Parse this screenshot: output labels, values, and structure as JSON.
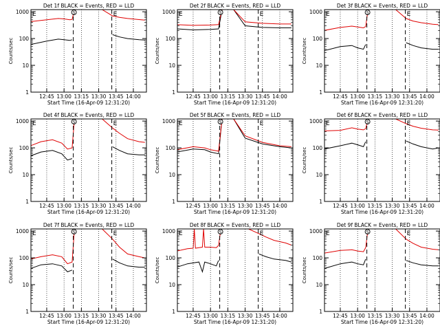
{
  "figure": {
    "ylabel": "Counts/sec",
    "xlabel": "Start Time (16-Apr-09 12:31:20)",
    "xticks": [
      "12:45",
      "13:00",
      "13:15",
      "13:30",
      "13:45",
      "14:00"
    ],
    "yticks": [
      "1",
      "10",
      "100",
      "1000"
    ],
    "colors": {
      "events": "#000000",
      "lld": "#e00000"
    }
  },
  "chart_data": [
    {
      "type": "line",
      "title": "Det 1f BLACK = Events, RED = LLD",
      "xlabel": "Start Time (16-Apr-09 12:31:20)",
      "ylabel": "Counts/sec",
      "xlim": [
        "12:31:20",
        "14:11:20"
      ],
      "ylim": [
        1,
        1200
      ],
      "yscale": "log",
      "markers": {
        "eclipse": [
          "12:31:20",
          "13:41:20"
        ],
        "saa": [
          "13:08:00"
        ]
      },
      "series": [
        {
          "key": "events",
          "x": [
            "12:31",
            "12:45",
            "12:55",
            "13:00",
            "13:05",
            "13:07"
          ],
          "values": [
            60,
            80,
            95,
            90,
            85,
            90
          ]
        },
        {
          "key": "lld",
          "x": [
            "12:31",
            "12:45",
            "12:55",
            "13:00",
            "13:05",
            "13:07",
            "13:09",
            "13:15",
            "13:25",
            "13:30"
          ],
          "values": [
            430,
            500,
            560,
            540,
            500,
            520,
            1200,
            1200,
            1200,
            1200
          ]
        },
        {
          "key": "events",
          "x": [
            "13:42",
            "13:48",
            "13:55",
            "14:05",
            "14:10"
          ],
          "values": [
            140,
            115,
            100,
            90,
            88
          ]
        },
        {
          "key": "lld",
          "x": [
            "13:33",
            "13:42",
            "13:48",
            "13:55",
            "14:05",
            "14:10"
          ],
          "values": [
            1200,
            700,
            620,
            560,
            510,
            490
          ]
        }
      ]
    },
    {
      "type": "line",
      "title": "Det 2f BLACK = Events, RED = LLD",
      "xlabel": "Start Time (16-Apr-09 12:31:20)",
      "ylabel": "Counts/sec",
      "xlim": [
        "12:31:20",
        "14:11:20"
      ],
      "ylim": [
        1,
        1200
      ],
      "yscale": "log",
      "markers": {
        "eclipse": [
          "12:31:20",
          "13:41:20"
        ],
        "saa": [
          "13:08:00"
        ]
      },
      "series": [
        {
          "key": "events",
          "x": [
            "12:31",
            "12:45",
            "13:00",
            "13:07",
            "13:10",
            "13:20",
            "13:30",
            "13:45",
            "14:00",
            "14:10"
          ],
          "values": [
            230,
            210,
            220,
            230,
            1200,
            1200,
            300,
            260,
            250,
            250
          ]
        },
        {
          "key": "lld",
          "x": [
            "12:31",
            "12:45",
            "13:00",
            "13:07",
            "13:10",
            "13:20",
            "13:30",
            "13:45",
            "14:00",
            "14:10"
          ],
          "values": [
            330,
            310,
            320,
            330,
            1200,
            1200,
            420,
            370,
            350,
            350
          ]
        }
      ]
    },
    {
      "type": "line",
      "title": "Det 3f BLACK = Events, RED = LLD",
      "xlabel": "Start Time (16-Apr-09 12:31:20)",
      "ylabel": "Counts/sec",
      "xlim": [
        "12:31:20",
        "14:11:20"
      ],
      "ylim": [
        1,
        1200
      ],
      "yscale": "log",
      "markers": {
        "eclipse": [
          "12:31:20",
          "13:41:20"
        ],
        "saa": [
          "13:08:00"
        ]
      },
      "series": [
        {
          "key": "events",
          "x": [
            "12:31",
            "12:45",
            "12:55",
            "13:00",
            "13:05",
            "13:07"
          ],
          "values": [
            35,
            50,
            55,
            45,
            40,
            60
          ]
        },
        {
          "key": "lld",
          "x": [
            "12:31",
            "12:45",
            "12:55",
            "13:00",
            "13:05",
            "13:07",
            "13:09",
            "13:15",
            "13:25",
            "13:30"
          ],
          "values": [
            200,
            260,
            290,
            270,
            250,
            280,
            1200,
            1200,
            1200,
            1200
          ]
        },
        {
          "key": "events",
          "x": [
            "13:42",
            "13:48",
            "13:55",
            "14:05",
            "14:10"
          ],
          "values": [
            70,
            55,
            45,
            40,
            40
          ]
        },
        {
          "key": "lld",
          "x": [
            "13:33",
            "13:42",
            "13:48",
            "13:55",
            "14:05",
            "14:10"
          ],
          "values": [
            1200,
            560,
            450,
            390,
            340,
            330
          ]
        }
      ]
    },
    {
      "type": "line",
      "title": "Det 4f BLACK = Events, RED = LLD",
      "xlabel": "Start Time (16-Apr-09 12:31:20)",
      "ylabel": "Counts/sec",
      "xlim": [
        "12:31:20",
        "14:11:20"
      ],
      "ylim": [
        1,
        1200
      ],
      "yscale": "log",
      "markers": {
        "eclipse": [
          "12:31:20",
          "13:41:20"
        ],
        "saa": [
          "13:08:00"
        ]
      },
      "series": [
        {
          "key": "events",
          "x": [
            "12:31",
            "12:40",
            "12:50",
            "12:58",
            "13:03",
            "13:07"
          ],
          "values": [
            50,
            70,
            80,
            60,
            35,
            40
          ]
        },
        {
          "key": "lld",
          "x": [
            "12:31",
            "12:40",
            "12:50",
            "12:58",
            "13:03",
            "13:07",
            "13:09",
            "13:15",
            "13:25",
            "13:30"
          ],
          "values": [
            120,
            170,
            200,
            150,
            90,
            100,
            1200,
            1200,
            1200,
            1200
          ]
        },
        {
          "key": "events",
          "x": [
            "13:42",
            "13:48",
            "13:55",
            "14:05",
            "14:10"
          ],
          "values": [
            110,
            80,
            60,
            55,
            55
          ]
        },
        {
          "key": "lld",
          "x": [
            "13:33",
            "13:42",
            "13:48",
            "13:55",
            "14:05",
            "14:10"
          ],
          "values": [
            1200,
            550,
            350,
            220,
            170,
            160
          ]
        }
      ]
    },
    {
      "type": "line",
      "title": "Det 5f BLACK = Events, RED = LLD",
      "xlabel": "Start Time (16-Apr-09 12:31:20)",
      "ylabel": "Counts/sec",
      "xlim": [
        "12:31:20",
        "14:11:20"
      ],
      "ylim": [
        1,
        1200
      ],
      "yscale": "log",
      "markers": {
        "eclipse": [
          "12:31:20",
          "13:41:20"
        ],
        "saa": [
          "13:08:00"
        ]
      },
      "series": [
        {
          "key": "events",
          "x": [
            "12:31",
            "12:45",
            "12:55",
            "13:00",
            "13:07",
            "13:10",
            "13:20",
            "13:30",
            "13:45",
            "14:00",
            "14:10"
          ],
          "values": [
            70,
            90,
            85,
            70,
            60,
            1200,
            1200,
            230,
            140,
            110,
            100
          ]
        },
        {
          "key": "lld",
          "x": [
            "12:31",
            "12:45",
            "12:55",
            "13:00",
            "13:07",
            "13:10",
            "13:20",
            "13:30",
            "13:45",
            "14:00",
            "14:10"
          ],
          "values": [
            85,
            110,
            100,
            85,
            75,
            1200,
            1200,
            280,
            160,
            120,
            110
          ]
        }
      ]
    },
    {
      "type": "line",
      "title": "Det 6f BLACK = Events, RED = LLD",
      "xlabel": "Start Time (16-Apr-09 12:31:20)",
      "ylabel": "Counts/sec",
      "xlim": [
        "12:31:20",
        "14:11:20"
      ],
      "ylim": [
        1,
        1200
      ],
      "yscale": "log",
      "markers": {
        "eclipse": [
          "12:31:20",
          "13:41:20"
        ],
        "saa": [
          "13:08:00"
        ]
      },
      "series": [
        {
          "key": "events",
          "x": [
            "12:31",
            "12:45",
            "12:55",
            "13:00",
            "13:05",
            "13:07"
          ],
          "values": [
            90,
            120,
            150,
            130,
            110,
            170
          ]
        },
        {
          "key": "lld",
          "x": [
            "12:31",
            "12:45",
            "12:55",
            "13:00",
            "13:05",
            "13:07",
            "13:09",
            "13:15",
            "13:25",
            "13:30"
          ],
          "values": [
            430,
            450,
            560,
            500,
            470,
            520,
            1200,
            1200,
            1200,
            1200
          ]
        },
        {
          "key": "events",
          "x": [
            "13:42",
            "13:48",
            "13:55",
            "14:05",
            "14:10"
          ],
          "values": [
            180,
            140,
            110,
            90,
            100
          ]
        },
        {
          "key": "lld",
          "x": [
            "13:33",
            "13:42",
            "13:48",
            "13:55",
            "14:05",
            "14:10"
          ],
          "values": [
            1200,
            800,
            640,
            540,
            470,
            460
          ]
        }
      ]
    },
    {
      "type": "line",
      "title": "Det 7f BLACK = Events, RED = LLD",
      "xlabel": "Start Time (16-Apr-09 12:31:20)",
      "ylabel": "Counts/sec",
      "xlim": [
        "12:31:20",
        "14:11:20"
      ],
      "ylim": [
        1,
        1200
      ],
      "yscale": "log",
      "markers": {
        "eclipse": [
          "12:31:20",
          "13:41:20"
        ],
        "saa": [
          "13:08:00"
        ]
      },
      "series": [
        {
          "key": "events",
          "x": [
            "12:31",
            "12:40",
            "12:50",
            "12:58",
            "13:03",
            "13:07"
          ],
          "values": [
            40,
            55,
            60,
            50,
            30,
            35
          ]
        },
        {
          "key": "lld",
          "x": [
            "12:31",
            "12:40",
            "12:50",
            "12:58",
            "13:03",
            "13:07",
            "13:09",
            "13:15",
            "13:25",
            "13:30"
          ],
          "values": [
            90,
            110,
            130,
            110,
            60,
            70,
            1200,
            1200,
            1200,
            1200
          ]
        },
        {
          "key": "events",
          "x": [
            "13:42",
            "13:48",
            "13:55",
            "14:05",
            "14:10"
          ],
          "values": [
            90,
            65,
            50,
            45,
            45
          ]
        },
        {
          "key": "lld",
          "x": [
            "13:33",
            "13:42",
            "13:48",
            "13:55",
            "14:05",
            "14:10"
          ],
          "values": [
            1200,
            500,
            250,
            140,
            110,
            100
          ]
        }
      ]
    },
    {
      "type": "line",
      "title": "Det 8f BLACK = Events, RED = LLD",
      "xlabel": "Start Time (16-Apr-09 12:31:20)",
      "ylabel": "Counts/sec",
      "xlim": [
        "12:31:20",
        "14:11:20"
      ],
      "ylim": [
        1,
        1200
      ],
      "yscale": "log",
      "markers": {
        "eclipse": [
          "12:31:20",
          "13:41:20"
        ],
        "saa": [
          "13:08:00"
        ]
      },
      "series": [
        {
          "key": "events",
          "x": [
            "12:31",
            "12:40",
            "12:50",
            "12:53",
            "12:55",
            "13:00",
            "13:05",
            "13:07"
          ],
          "values": [
            45,
            60,
            70,
            30,
            70,
            60,
            50,
            80
          ]
        },
        {
          "key": "lld",
          "x": [
            "12:31",
            "12:40",
            "12:45",
            "12:46",
            "12:47",
            "12:50",
            "12:53",
            "12:54",
            "12:55",
            "13:00",
            "13:05",
            "13:07",
            "13:09",
            "13:15",
            "13:25",
            "13:30"
          ],
          "values": [
            180,
            220,
            230,
            1200,
            230,
            240,
            250,
            1200,
            250,
            250,
            240,
            290,
            1200,
            1200,
            1200,
            1200
          ]
        },
        {
          "key": "events",
          "x": [
            "13:42",
            "13:48",
            "13:55",
            "14:05",
            "14:10"
          ],
          "values": [
            140,
            110,
            90,
            80,
            70
          ]
        },
        {
          "key": "lld",
          "x": [
            "13:33",
            "13:42",
            "13:48",
            "13:55",
            "14:05",
            "14:10"
          ],
          "values": [
            1200,
            800,
            600,
            450,
            360,
            300
          ]
        }
      ]
    },
    {
      "type": "line",
      "title": "Det 9f BLACK = Events, RED = LLD",
      "xlabel": "Start Time (16-Apr-09 12:31:20)",
      "ylabel": "Counts/sec",
      "xlim": [
        "12:31:20",
        "14:11:20"
      ],
      "ylim": [
        1,
        1200
      ],
      "yscale": "log",
      "markers": {
        "eclipse": [
          "12:31:20",
          "13:41:20"
        ],
        "saa": [
          "13:08:00"
        ]
      },
      "series": [
        {
          "key": "events",
          "x": [
            "12:31",
            "12:45",
            "12:55",
            "13:00",
            "13:05",
            "13:07"
          ],
          "values": [
            40,
            60,
            70,
            60,
            55,
            90
          ]
        },
        {
          "key": "lld",
          "x": [
            "12:31",
            "12:45",
            "12:55",
            "13:00",
            "13:05",
            "13:07",
            "13:09",
            "13:15",
            "13:25",
            "13:30"
          ],
          "values": [
            150,
            190,
            200,
            180,
            170,
            240,
            1200,
            1200,
            1200,
            1200
          ]
        },
        {
          "key": "events",
          "x": [
            "13:42",
            "13:48",
            "13:55",
            "14:05",
            "14:10"
          ],
          "values": [
            80,
            65,
            55,
            50,
            50
          ]
        },
        {
          "key": "lld",
          "x": [
            "13:33",
            "13:42",
            "13:48",
            "13:55",
            "14:05",
            "14:10"
          ],
          "values": [
            1200,
            500,
            350,
            250,
            210,
            200
          ]
        }
      ]
    }
  ]
}
